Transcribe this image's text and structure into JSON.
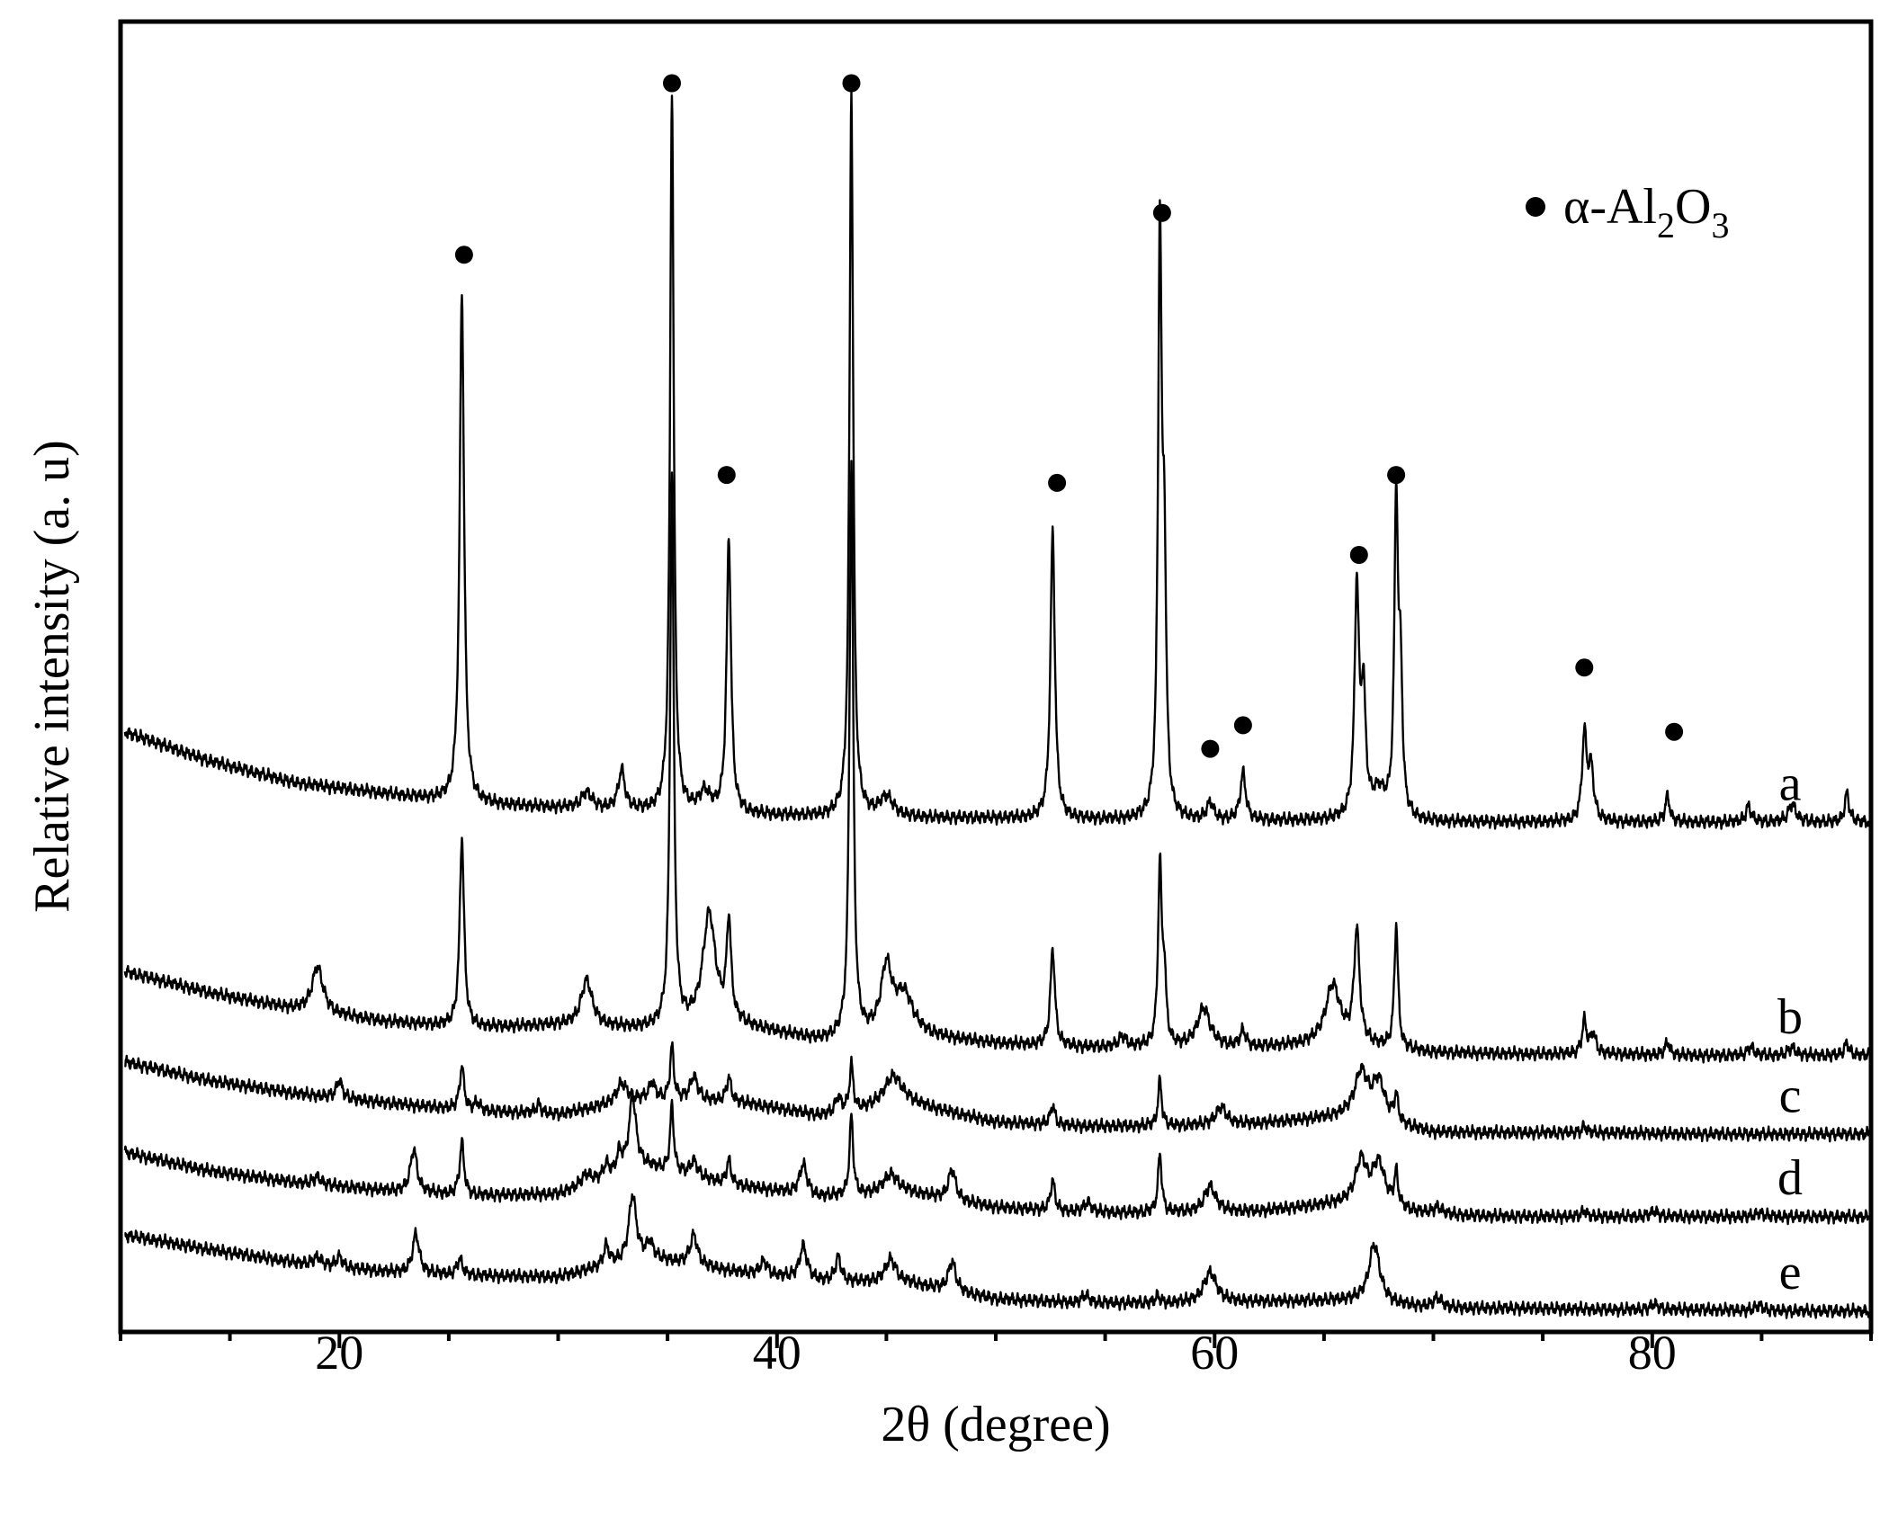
{
  "chart_data": {
    "type": "line",
    "title": "",
    "xlabel": "2θ (degree)",
    "ylabel": "Relative intensity (a. u)",
    "xlim": [
      10,
      90
    ],
    "ylim": [
      0,
      100
    ],
    "x_ticks": [
      20,
      40,
      60,
      80
    ],
    "grid": false,
    "legend": {
      "placement": "top-right",
      "marker": "filled-circle",
      "label": "α-Al2O3",
      "text_main": "α-Al",
      "sub1": "2",
      "text_mid": "O",
      "sub2": "3"
    },
    "series_units": "2θ in degrees; intensity in arbitrary units (offset traces, 0 = bottom of frame, 100 = top of frame)",
    "series": [
      {
        "name": "a",
        "baseline": [
          [
            10.2,
            45.8
          ],
          [
            14,
            43.6
          ],
          [
            18,
            41.9
          ],
          [
            22,
            41.1
          ],
          [
            26,
            40.3
          ],
          [
            30,
            40.0
          ],
          [
            34,
            39.7
          ],
          [
            38,
            39.5
          ],
          [
            42,
            39.3
          ],
          [
            46,
            39.2
          ],
          [
            50,
            39.2
          ],
          [
            54,
            39.1
          ],
          [
            58,
            39.0
          ],
          [
            62,
            39.0
          ],
          [
            66,
            39.0
          ],
          [
            70,
            38.9
          ],
          [
            74,
            38.9
          ],
          [
            78,
            38.9
          ],
          [
            82,
            38.9
          ],
          [
            86,
            38.9
          ],
          [
            89.9,
            38.9
          ]
        ],
        "peaks": [
          {
            "x": 25.6,
            "h": 39.0,
            "w": 0.12
          },
          {
            "x": 31.3,
            "h": 1.2,
            "w": 0.3
          },
          {
            "x": 32.9,
            "h": 3.0,
            "w": 0.18
          },
          {
            "x": 35.2,
            "h": 55.0,
            "w": 0.1
          },
          {
            "x": 36.7,
            "h": 1.5,
            "w": 0.3
          },
          {
            "x": 37.8,
            "h": 21.0,
            "w": 0.12
          },
          {
            "x": 43.4,
            "h": 55.5,
            "w": 0.1
          },
          {
            "x": 45.0,
            "h": 1.5,
            "w": 0.4
          },
          {
            "x": 52.6,
            "h": 22.0,
            "w": 0.12
          },
          {
            "x": 57.5,
            "h": 44.0,
            "w": 0.1
          },
          {
            "x": 57.7,
            "h": 18.0,
            "w": 0.1
          },
          {
            "x": 59.8,
            "h": 1.3,
            "w": 0.18
          },
          {
            "x": 61.3,
            "h": 3.6,
            "w": 0.15
          },
          {
            "x": 66.5,
            "h": 17.5,
            "w": 0.12
          },
          {
            "x": 66.8,
            "h": 9.0,
            "w": 0.12
          },
          {
            "x": 67.5,
            "h": 2.0,
            "w": 0.4
          },
          {
            "x": 68.3,
            "h": 24.0,
            "w": 0.1
          },
          {
            "x": 68.5,
            "h": 10.0,
            "w": 0.1
          },
          {
            "x": 76.9,
            "h": 6.5,
            "w": 0.12
          },
          {
            "x": 77.2,
            "h": 4.0,
            "w": 0.15
          },
          {
            "x": 80.7,
            "h": 2.0,
            "w": 0.12
          },
          {
            "x": 84.4,
            "h": 1.2,
            "w": 0.15
          },
          {
            "x": 86.4,
            "h": 1.4,
            "w": 0.2
          },
          {
            "x": 88.9,
            "h": 2.2,
            "w": 0.12
          }
        ]
      },
      {
        "name": "b",
        "baseline": [
          [
            10.2,
            27.5
          ],
          [
            14,
            25.9
          ],
          [
            18,
            24.6
          ],
          [
            22,
            23.7
          ],
          [
            26,
            23.2
          ],
          [
            30,
            23.4
          ],
          [
            34,
            23.1
          ],
          [
            38,
            23.4
          ],
          [
            42,
            22.2
          ],
          [
            46,
            22.6
          ],
          [
            50,
            22.0
          ],
          [
            54,
            21.7
          ],
          [
            58,
            21.7
          ],
          [
            62,
            21.7
          ],
          [
            66,
            22.0
          ],
          [
            70,
            21.3
          ],
          [
            74,
            21.2
          ],
          [
            78,
            21.2
          ],
          [
            82,
            21.1
          ],
          [
            86,
            21.1
          ],
          [
            89.9,
            21.1
          ]
        ],
        "peaks": [
          {
            "x": 19.0,
            "h": 3.5,
            "w": 0.3
          },
          {
            "x": 25.6,
            "h": 14.5,
            "w": 0.12
          },
          {
            "x": 31.3,
            "h": 3.5,
            "w": 0.3
          },
          {
            "x": 35.2,
            "h": 42.0,
            "w": 0.1
          },
          {
            "x": 36.9,
            "h": 8.5,
            "w": 0.35
          },
          {
            "x": 37.8,
            "h": 7.5,
            "w": 0.12
          },
          {
            "x": 43.4,
            "h": 44.0,
            "w": 0.1
          },
          {
            "x": 45.0,
            "h": 5.0,
            "w": 0.3
          },
          {
            "x": 45.8,
            "h": 3.0,
            "w": 0.5
          },
          {
            "x": 52.6,
            "h": 7.5,
            "w": 0.12
          },
          {
            "x": 55.8,
            "h": 0.8,
            "w": 0.2
          },
          {
            "x": 57.5,
            "h": 13.5,
            "w": 0.1
          },
          {
            "x": 57.7,
            "h": 5.0,
            "w": 0.1
          },
          {
            "x": 59.5,
            "h": 3.0,
            "w": 0.35
          },
          {
            "x": 61.3,
            "h": 1.2,
            "w": 0.15
          },
          {
            "x": 65.4,
            "h": 4.5,
            "w": 0.4
          },
          {
            "x": 66.5,
            "h": 8.5,
            "w": 0.15
          },
          {
            "x": 68.3,
            "h": 9.5,
            "w": 0.1
          },
          {
            "x": 76.9,
            "h": 2.5,
            "w": 0.12
          },
          {
            "x": 77.3,
            "h": 1.5,
            "w": 0.15
          },
          {
            "x": 80.7,
            "h": 1.0,
            "w": 0.12
          },
          {
            "x": 84.5,
            "h": 0.7,
            "w": 0.15
          },
          {
            "x": 86.4,
            "h": 0.6,
            "w": 0.2
          },
          {
            "x": 88.9,
            "h": 1.0,
            "w": 0.12
          }
        ]
      },
      {
        "name": "c",
        "baseline": [
          [
            10.2,
            20.6
          ],
          [
            14,
            19.2
          ],
          [
            18,
            18.2
          ],
          [
            22,
            17.5
          ],
          [
            26,
            16.9
          ],
          [
            30,
            16.6
          ],
          [
            34,
            17.8
          ],
          [
            38,
            17.6
          ],
          [
            42,
            16.5
          ],
          [
            46,
            17.4
          ],
          [
            50,
            16.0
          ],
          [
            54,
            15.7
          ],
          [
            58,
            15.7
          ],
          [
            62,
            15.9
          ],
          [
            66,
            16.4
          ],
          [
            70,
            15.2
          ],
          [
            74,
            15.2
          ],
          [
            78,
            15.2
          ],
          [
            82,
            15.1
          ],
          [
            86,
            15.1
          ],
          [
            89.9,
            15.1
          ]
        ],
        "peaks": [
          {
            "x": 20.0,
            "h": 1.4,
            "w": 0.15
          },
          {
            "x": 25.6,
            "h": 3.3,
            "w": 0.12
          },
          {
            "x": 26.3,
            "h": 0.6,
            "w": 0.15
          },
          {
            "x": 29.1,
            "h": 0.7,
            "w": 0.15
          },
          {
            "x": 32.9,
            "h": 1.5,
            "w": 0.3
          },
          {
            "x": 34.3,
            "h": 1.2,
            "w": 0.15
          },
          {
            "x": 35.2,
            "h": 4.0,
            "w": 0.1
          },
          {
            "x": 36.2,
            "h": 1.8,
            "w": 0.2
          },
          {
            "x": 37.8,
            "h": 1.8,
            "w": 0.12
          },
          {
            "x": 42.8,
            "h": 1.2,
            "w": 0.15
          },
          {
            "x": 43.4,
            "h": 3.5,
            "w": 0.1
          },
          {
            "x": 45.3,
            "h": 2.3,
            "w": 0.5
          },
          {
            "x": 52.6,
            "h": 1.5,
            "w": 0.12
          },
          {
            "x": 57.5,
            "h": 3.5,
            "w": 0.1
          },
          {
            "x": 60.3,
            "h": 1.3,
            "w": 0.3
          },
          {
            "x": 66.7,
            "h": 3.5,
            "w": 0.35
          },
          {
            "x": 67.5,
            "h": 3.0,
            "w": 0.35
          },
          {
            "x": 68.3,
            "h": 2.0,
            "w": 0.1
          },
          {
            "x": 76.9,
            "h": 0.5,
            "w": 0.12
          }
        ]
      },
      {
        "name": "d",
        "baseline": [
          [
            10.2,
            13.7
          ],
          [
            14,
            12.3
          ],
          [
            18,
            11.4
          ],
          [
            22,
            10.8
          ],
          [
            26,
            10.4
          ],
          [
            30,
            10.5
          ],
          [
            34,
            12.6
          ],
          [
            38,
            11.2
          ],
          [
            42,
            10.3
          ],
          [
            46,
            10.6
          ],
          [
            50,
            9.5
          ],
          [
            54,
            9.1
          ],
          [
            58,
            9.1
          ],
          [
            62,
            9.2
          ],
          [
            66,
            9.8
          ],
          [
            70,
            8.9
          ],
          [
            74,
            8.8
          ],
          [
            78,
            8.8
          ],
          [
            82,
            8.8
          ],
          [
            86,
            8.8
          ],
          [
            89.9,
            8.8
          ]
        ],
        "peaks": [
          {
            "x": 19.0,
            "h": 0.6,
            "w": 0.2
          },
          {
            "x": 23.4,
            "h": 3.3,
            "w": 0.18
          },
          {
            "x": 25.6,
            "h": 4.0,
            "w": 0.12
          },
          {
            "x": 31.3,
            "h": 0.8,
            "w": 0.3
          },
          {
            "x": 32.2,
            "h": 1.0,
            "w": 0.15
          },
          {
            "x": 32.8,
            "h": 1.5,
            "w": 0.15
          },
          {
            "x": 33.4,
            "h": 5.5,
            "w": 0.2
          },
          {
            "x": 35.2,
            "h": 5.0,
            "w": 0.1
          },
          {
            "x": 36.2,
            "h": 1.2,
            "w": 0.2
          },
          {
            "x": 37.8,
            "h": 1.8,
            "w": 0.12
          },
          {
            "x": 41.2,
            "h": 2.3,
            "w": 0.2
          },
          {
            "x": 43.4,
            "h": 6.0,
            "w": 0.1
          },
          {
            "x": 45.2,
            "h": 1.5,
            "w": 0.4
          },
          {
            "x": 48.0,
            "h": 2.3,
            "w": 0.2
          },
          {
            "x": 52.6,
            "h": 2.3,
            "w": 0.12
          },
          {
            "x": 54.2,
            "h": 0.8,
            "w": 0.2
          },
          {
            "x": 57.5,
            "h": 4.5,
            "w": 0.1
          },
          {
            "x": 59.8,
            "h": 2.0,
            "w": 0.3
          },
          {
            "x": 66.7,
            "h": 3.3,
            "w": 0.3
          },
          {
            "x": 67.5,
            "h": 3.3,
            "w": 0.35
          },
          {
            "x": 68.3,
            "h": 2.5,
            "w": 0.1
          },
          {
            "x": 70.2,
            "h": 0.6,
            "w": 0.25
          },
          {
            "x": 76.9,
            "h": 0.5,
            "w": 0.12
          },
          {
            "x": 80.1,
            "h": 0.4,
            "w": 0.2
          },
          {
            "x": 84.9,
            "h": 0.3,
            "w": 0.2
          }
        ]
      },
      {
        "name": "e",
        "baseline": [
          [
            10.2,
            7.4
          ],
          [
            14,
            6.3
          ],
          [
            18,
            5.3
          ],
          [
            22,
            4.6
          ],
          [
            26,
            4.3
          ],
          [
            30,
            4.2
          ],
          [
            34,
            5.7
          ],
          [
            38,
            4.6
          ],
          [
            42,
            3.9
          ],
          [
            46,
            3.7
          ],
          [
            50,
            2.5
          ],
          [
            54,
            2.2
          ],
          [
            58,
            2.2
          ],
          [
            62,
            2.3
          ],
          [
            66,
            2.4
          ],
          [
            70,
            1.8
          ],
          [
            74,
            1.8
          ],
          [
            78,
            1.7
          ],
          [
            82,
            1.7
          ],
          [
            86,
            1.6
          ],
          [
            89.9,
            1.6
          ]
        ],
        "peaks": [
          {
            "x": 19.0,
            "h": 0.6,
            "w": 0.2
          },
          {
            "x": 20.0,
            "h": 0.8,
            "w": 0.15
          },
          {
            "x": 23.5,
            "h": 3.0,
            "w": 0.18
          },
          {
            "x": 25.5,
            "h": 1.2,
            "w": 0.15
          },
          {
            "x": 32.2,
            "h": 1.5,
            "w": 0.15
          },
          {
            "x": 33.4,
            "h": 5.0,
            "w": 0.2
          },
          {
            "x": 34.2,
            "h": 1.2,
            "w": 0.15
          },
          {
            "x": 36.2,
            "h": 2.3,
            "w": 0.2
          },
          {
            "x": 39.4,
            "h": 1.0,
            "w": 0.2
          },
          {
            "x": 41.2,
            "h": 2.5,
            "w": 0.2
          },
          {
            "x": 42.8,
            "h": 1.8,
            "w": 0.15
          },
          {
            "x": 45.2,
            "h": 1.8,
            "w": 0.3
          },
          {
            "x": 48.0,
            "h": 2.3,
            "w": 0.2
          },
          {
            "x": 54.1,
            "h": 0.6,
            "w": 0.2
          },
          {
            "x": 57.4,
            "h": 0.5,
            "w": 0.12
          },
          {
            "x": 59.8,
            "h": 2.3,
            "w": 0.35
          },
          {
            "x": 67.3,
            "h": 4.5,
            "w": 0.3
          },
          {
            "x": 70.2,
            "h": 0.8,
            "w": 0.25
          },
          {
            "x": 80.1,
            "h": 0.4,
            "w": 0.2
          },
          {
            "x": 84.9,
            "h": 0.4,
            "w": 0.2
          }
        ]
      }
    ],
    "markers": {
      "symbol": "filled-circle",
      "meaning": "α-Al2O3",
      "series": "a",
      "points": [
        [
          25.7,
          82.2
        ],
        [
          35.2,
          95.3
        ],
        [
          43.4,
          95.3
        ],
        [
          37.7,
          65.4
        ],
        [
          52.8,
          64.8
        ],
        [
          57.6,
          85.4
        ],
        [
          59.8,
          44.5
        ],
        [
          61.3,
          46.3
        ],
        [
          66.6,
          59.3
        ],
        [
          68.3,
          65.4
        ],
        [
          76.9,
          50.7
        ],
        [
          81.0,
          45.8
        ]
      ]
    }
  }
}
